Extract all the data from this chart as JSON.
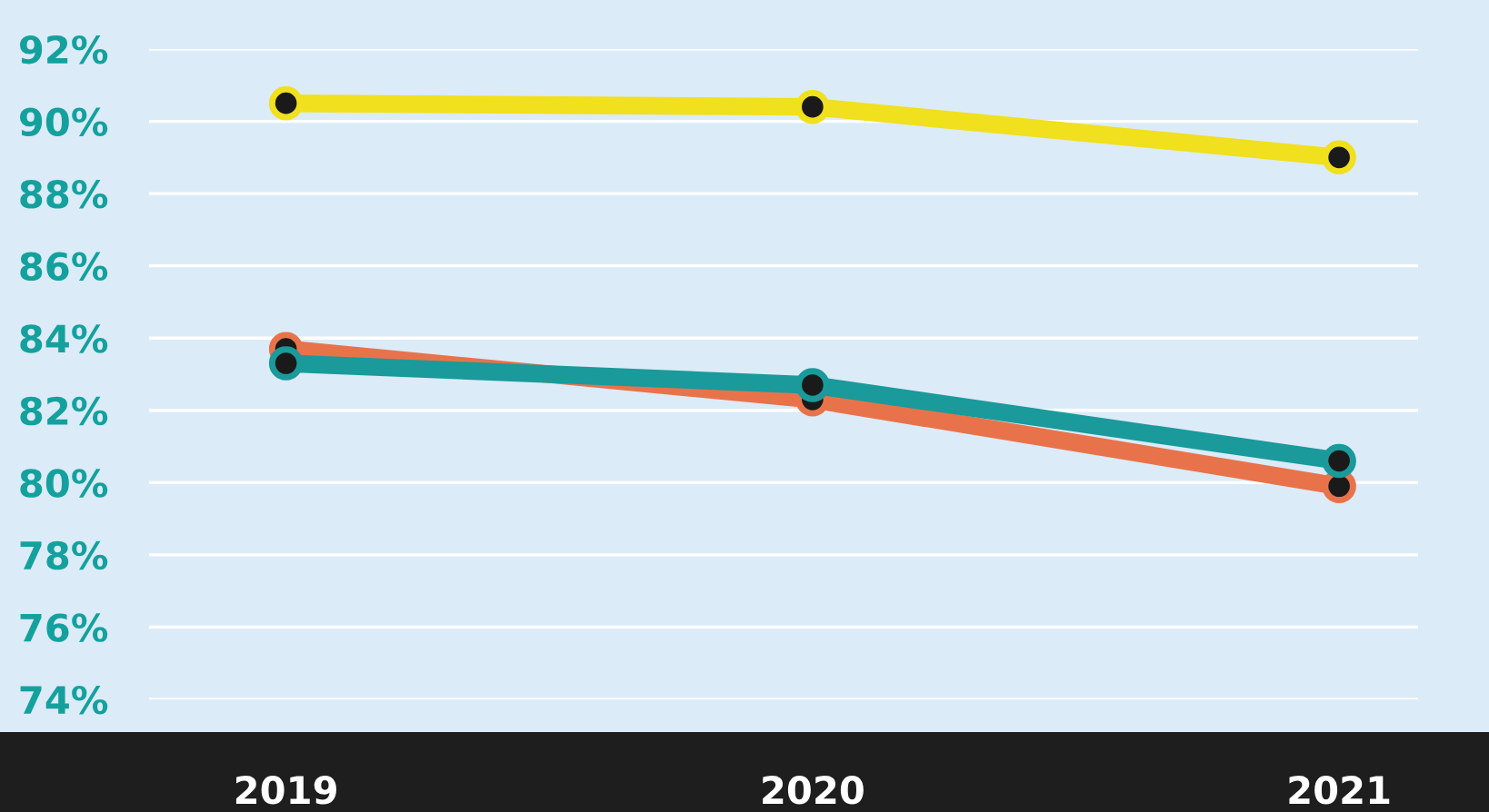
{
  "chart_data": {
    "type": "line",
    "categories": [
      "2019",
      "2020",
      "2021"
    ],
    "series": [
      {
        "color": "#f0e01e",
        "values": [
          90.5,
          90.4,
          89.0
        ]
      },
      {
        "color": "#e8734a",
        "values": [
          83.7,
          82.3,
          79.9
        ]
      },
      {
        "color": "#1a9a9a",
        "values": [
          83.3,
          82.7,
          80.6
        ]
      }
    ],
    "ylim": [
      74,
      92
    ],
    "yticks": [
      {
        "value": 74,
        "label": "74%"
      },
      {
        "value": 76,
        "label": "76%"
      },
      {
        "value": 78,
        "label": "78%"
      },
      {
        "value": 80,
        "label": "80%"
      },
      {
        "value": 82,
        "label": "82%"
      },
      {
        "value": 84,
        "label": "84%"
      },
      {
        "value": 86,
        "label": "86%"
      },
      {
        "value": 88,
        "label": "88%"
      },
      {
        "value": 90,
        "label": "90%"
      },
      {
        "value": 92,
        "label": "92%"
      }
    ],
    "grid": "y",
    "marker": "circle",
    "line_style": "solid",
    "legend": false
  }
}
